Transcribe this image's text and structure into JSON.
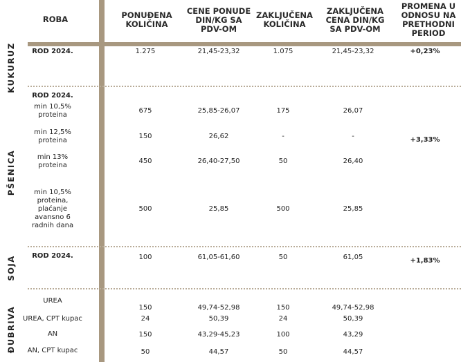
{
  "header": {
    "roba": "ROBA",
    "ponudjena": [
      "PONUĐENA",
      "KOLIČINA"
    ],
    "cene_ponude": [
      "CENE PONUDE",
      "DIN/KG SA",
      "PDV-OM"
    ],
    "zakljucena_kolicina": [
      "ZAKLJUČENA",
      "KOLIČINA"
    ],
    "zakljucena_cena": [
      "ZAKLJUČENA",
      "CENA DIN/KG",
      "SA PDV-OM"
    ],
    "promena": [
      "PROMENA U",
      "ODNOSU NA",
      "PRETHODNI",
      "PERIOD"
    ]
  },
  "groups": {
    "kukuruz": {
      "label": "KUKURUZ",
      "change": "+0,23%",
      "rows": [
        {
          "roba": "ROD 2024.",
          "ponudjena": "1.275",
          "cene": "21,45-23,32",
          "zkol": "1.075",
          "zcena": "21,45-23,32"
        }
      ]
    },
    "psenica": {
      "label": "PŠENICA",
      "title": "ROD 2024.",
      "change": "+3,33%",
      "rows": [
        {
          "roba": [
            "min 10,5%",
            "proteina"
          ],
          "ponudjena": "675",
          "cene": "25,85-26,07",
          "zkol": "175",
          "zcena": "26,07"
        },
        {
          "roba": [
            "min 12,5%",
            "proteina"
          ],
          "ponudjena": "150",
          "cene": "26,62",
          "zkol": "-",
          "zcena": "-"
        },
        {
          "roba": [
            "min 13%",
            "proteina"
          ],
          "ponudjena": "450",
          "cene": "26,40-27,50",
          "zkol": "50",
          "zcena": "26,40"
        },
        {
          "roba": [
            "min 10,5%",
            "proteina,",
            "plaćanje",
            "avansno 6",
            "radnih dana"
          ],
          "ponudjena": "500",
          "cene": "25,85",
          "zkol": "500",
          "zcena": "25,85"
        }
      ]
    },
    "soja": {
      "label": "SOJA",
      "change": "+1,83%",
      "rows": [
        {
          "roba": "ROD 2024.",
          "ponudjena": "100",
          "cene": "61,05-61,60",
          "zkol": "50",
          "zcena": "61,05"
        }
      ]
    },
    "djubriva": {
      "label": "ĐUBRIVA",
      "rows": [
        {
          "roba": "UREA",
          "ponudjena": "150",
          "cene": "49,74-52,98",
          "zkol": "150",
          "zcena": "49,74-52,98"
        },
        {
          "roba": "UREA, CPT kupac",
          "ponudjena": "24",
          "cene": "50,39",
          "zkol": "24",
          "zcena": "50,39"
        },
        {
          "roba": "AN",
          "ponudjena": "150",
          "cene": "43,29-45,23",
          "zkol": "100",
          "zcena": "43,29"
        },
        {
          "roba": "AN, CPT kupac",
          "ponudjena": "50",
          "cene": "44,57",
          "zkol": "50",
          "zcena": "44,57"
        }
      ]
    }
  },
  "colors": {
    "divider": "#a89880",
    "dotted": "#b8ab98"
  }
}
